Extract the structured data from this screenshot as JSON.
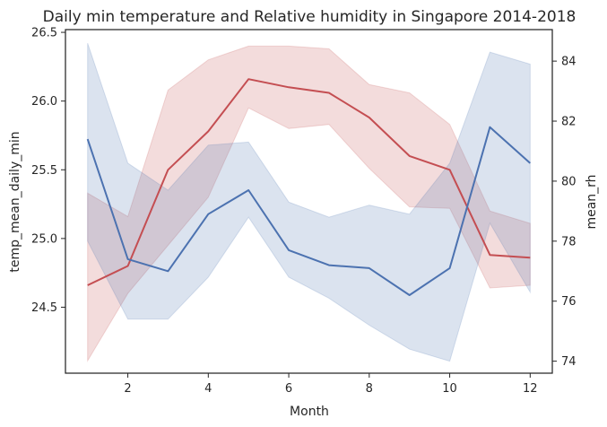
{
  "chart_data": {
    "type": "line",
    "title": "Daily min temperature and Relative humidity in Singapore 2014-2018",
    "xlabel": "Month",
    "x": [
      1,
      2,
      3,
      4,
      5,
      6,
      7,
      8,
      9,
      10,
      11,
      12
    ],
    "xticks": [
      2,
      4,
      6,
      8,
      10,
      12
    ],
    "xlim": [
      0.45,
      12.55
    ],
    "grid": false,
    "left_axis": {
      "label": "temp_mean_daily_min",
      "ylim": [
        24.02,
        26.52
      ],
      "ticks": [
        24.5,
        25.0,
        25.5,
        26.0,
        26.5
      ],
      "tick_labels": [
        "24.5",
        "25.0",
        "25.5",
        "26.0",
        "26.5"
      ]
    },
    "right_axis": {
      "label": "mean_rh",
      "ylim": [
        73.6,
        85.05
      ],
      "ticks": [
        74,
        76,
        78,
        80,
        82,
        84
      ],
      "tick_labels": [
        "74",
        "76",
        "78",
        "80",
        "82",
        "84"
      ]
    },
    "series": [
      {
        "axis": "left",
        "color": "#c44e52",
        "values": [
          24.66,
          24.8,
          25.5,
          25.78,
          26.16,
          26.1,
          26.06,
          25.88,
          25.6,
          25.5,
          24.88,
          24.86
        ],
        "ci_lower": [
          24.11,
          24.6,
          24.95,
          25.3,
          25.95,
          25.8,
          25.83,
          25.51,
          25.23,
          25.22,
          24.64,
          24.66
        ],
        "ci_upper": [
          25.33,
          25.16,
          26.08,
          26.3,
          26.4,
          26.4,
          26.38,
          26.12,
          26.06,
          25.83,
          25.2,
          25.11
        ]
      },
      {
        "axis": "right",
        "color": "#4c72b0",
        "values": [
          81.4,
          77.4,
          77.0,
          78.9,
          79.7,
          77.7,
          77.2,
          77.1,
          76.2,
          77.1,
          81.8,
          80.6
        ],
        "ci_lower": [
          78.0,
          75.4,
          75.4,
          76.8,
          78.8,
          76.8,
          76.1,
          75.2,
          74.4,
          74.0,
          78.6,
          76.3
        ],
        "ci_upper": [
          84.6,
          80.6,
          79.7,
          81.2,
          81.3,
          79.3,
          78.8,
          79.2,
          78.9,
          80.6,
          84.3,
          83.9
        ]
      }
    ]
  }
}
